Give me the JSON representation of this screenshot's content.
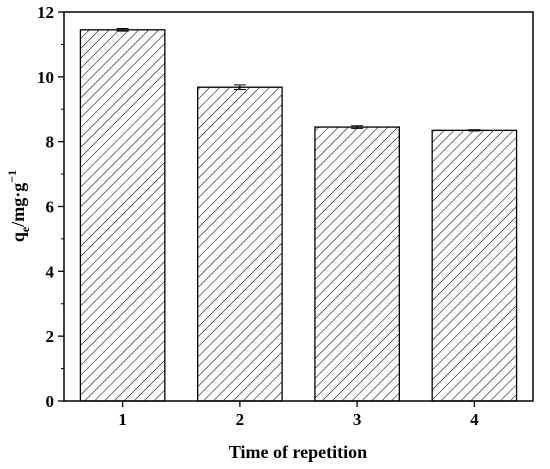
{
  "chart_data": {
    "type": "bar",
    "categories": [
      "1",
      "2",
      "3",
      "4"
    ],
    "values": [
      11.45,
      9.68,
      8.45,
      8.35
    ],
    "errors": [
      0.04,
      0.07,
      0.04,
      0.02
    ],
    "xlabel": "Time of repetition",
    "ylabel_main": "q",
    "ylabel_sub": "e",
    "ylabel_rest": "/mg·g",
    "ylabel_sup": "−1",
    "ylim": [
      0,
      12
    ],
    "yticks": [
      "0",
      "2",
      "4",
      "6",
      "8",
      "10",
      "12"
    ],
    "bar_pattern": "diagonal-hatch",
    "bar_color": "#000000",
    "grid": false,
    "legend": "none"
  }
}
